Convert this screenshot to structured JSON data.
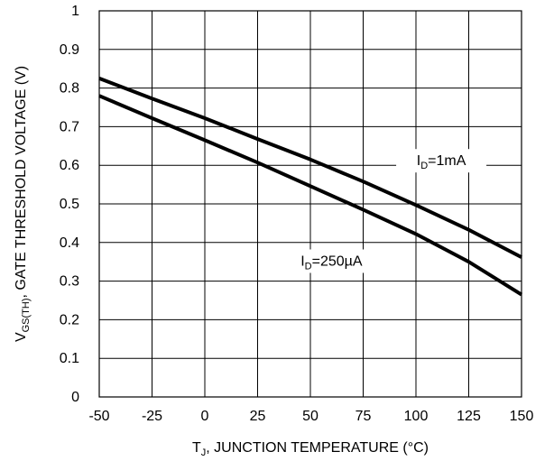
{
  "chart_data": {
    "type": "line",
    "xlabel": {
      "main": "T",
      "sub": "J",
      "rest": ", JUNCTION TEMPERATURE (°C)"
    },
    "ylabel": {
      "main": "V",
      "sub": "GS(TH)",
      "rest": ", GATE THRESHOLD VOLTAGE (V)"
    },
    "xlim": [
      -50,
      150
    ],
    "ylim": [
      0,
      1
    ],
    "x_ticks": [
      "-50",
      "-25",
      "0",
      "25",
      "50",
      "75",
      "100",
      "125",
      "150"
    ],
    "y_ticks": [
      "0",
      "0.1",
      "0.2",
      "0.3",
      "0.4",
      "0.5",
      "0.6",
      "0.7",
      "0.8",
      "0.9",
      "1"
    ],
    "grid": true,
    "series": [
      {
        "name": "ID=1mA",
        "label": {
          "main": "I",
          "sub": "D",
          "rest": "=1mA"
        },
        "x": [
          -50,
          -25,
          0,
          25,
          50,
          75,
          100,
          125,
          150
        ],
        "y": [
          0.825,
          0.773,
          0.722,
          0.668,
          0.615,
          0.558,
          0.497,
          0.433,
          0.362
        ]
      },
      {
        "name": "ID=250µA",
        "label": {
          "main": "I",
          "sub": "D",
          "rest": "=250µA"
        },
        "x": [
          -50,
          -25,
          0,
          25,
          50,
          75,
          100,
          125,
          150
        ],
        "y": [
          0.78,
          0.722,
          0.665,
          0.607,
          0.546,
          0.485,
          0.422,
          0.35,
          0.265
        ]
      }
    ]
  }
}
